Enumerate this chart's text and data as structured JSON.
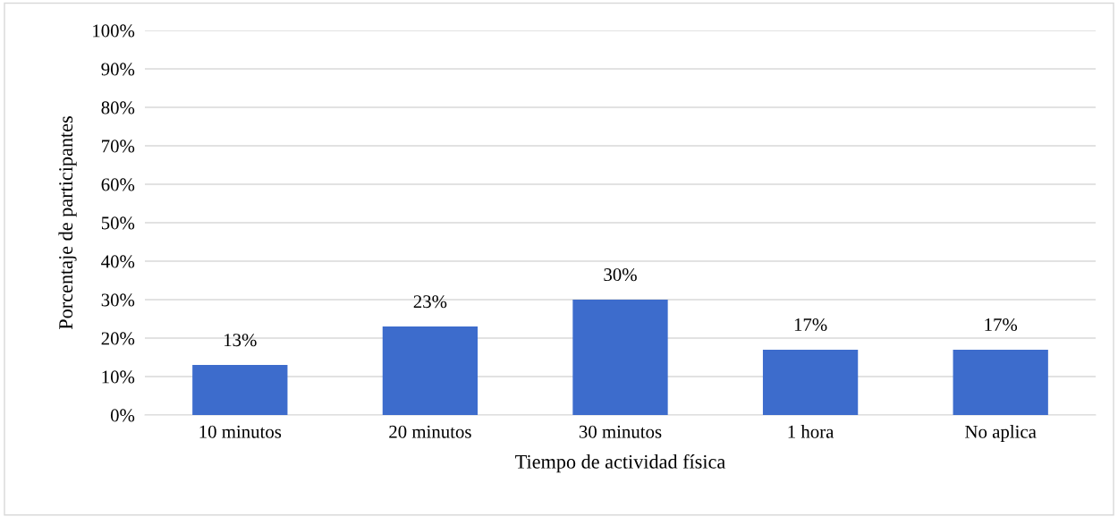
{
  "chart_data": {
    "type": "bar",
    "xlabel": "Tiempo de actividad física",
    "ylabel": "Porcentaje de participantes",
    "categories": [
      "10 minutos",
      "20 minutos",
      "30 minutos",
      "1 hora",
      "No aplica"
    ],
    "values": [
      13,
      23,
      30,
      17,
      17
    ],
    "value_labels": [
      "13%",
      "23%",
      "30%",
      "17%",
      "17%"
    ],
    "color": "#3d6ccc",
    "ylim": [
      0,
      100
    ],
    "yticks": [
      {
        "value": 0,
        "label": "0%"
      },
      {
        "value": 10,
        "label": "10%"
      },
      {
        "value": 20,
        "label": "20%"
      },
      {
        "value": 30,
        "label": "30%"
      },
      {
        "value": 40,
        "label": "40%"
      },
      {
        "value": 50,
        "label": "50%"
      },
      {
        "value": 60,
        "label": "60%"
      },
      {
        "value": 70,
        "label": "70%"
      },
      {
        "value": 80,
        "label": "80%"
      },
      {
        "value": 90,
        "label": "90%"
      },
      {
        "value": 100,
        "label": "100%"
      }
    ],
    "grid": "y",
    "legend": false
  }
}
